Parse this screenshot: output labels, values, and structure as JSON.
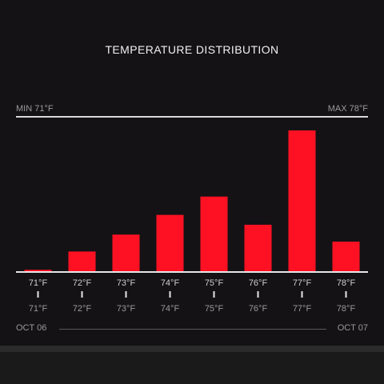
{
  "chart_data": {
    "type": "bar",
    "title": "TEMPERATURE DISTRIBUTION",
    "min_label": "MIN 71°F",
    "max_label": "MAX 78°F",
    "categories": [
      "71°F",
      "72°F",
      "73°F",
      "74°F",
      "75°F",
      "76°F",
      "77°F",
      "78°F"
    ],
    "secondary_labels": [
      "71°F",
      "72°F",
      "73°F",
      "74°F",
      "75°F",
      "76°F",
      "77°F",
      "78°F"
    ],
    "values": [
      1,
      14,
      26,
      40,
      53,
      33,
      100,
      21
    ],
    "ylim": [
      0,
      100
    ],
    "start_label": "OCT 06",
    "end_label": "OCT 07",
    "bar_color": "#ff1124",
    "grid": false
  }
}
